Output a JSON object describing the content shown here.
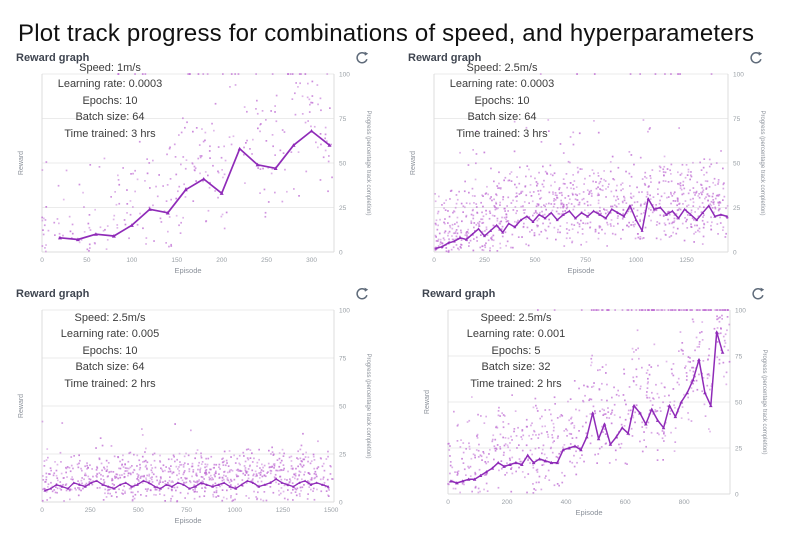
{
  "page_title": "Plot track progress for combinations of speed, and hyperparameters",
  "colors": {
    "title": "#111111",
    "panel_header": "#3f4550",
    "annotation": "#3c3c3c",
    "refresh_icon": "#5f6b7a",
    "line": "#8f2bb8",
    "dot": "#c06fd4",
    "grid": "#ebebeb",
    "axis_line": "#dcdcdc",
    "tick_label": "#9aa0a6",
    "axis_label": "#8b919a"
  },
  "panels": [
    {
      "title": "Reward graph",
      "refresh_icon": "refresh",
      "annotations": [
        "Speed: 1m/s",
        "Learning rate: 0.0003",
        "Epochs: 10",
        "Batch size: 64",
        "Time trained: 3 hrs"
      ]
    },
    {
      "title": "Reward graph",
      "refresh_icon": "refresh",
      "annotations": [
        "Speed: 2.5m/s",
        "Learning rate: 0.0003",
        "Epochs: 10",
        "Batch size: 64",
        "Time trained: 3 hrs"
      ]
    },
    {
      "title": "Reward graph",
      "refresh_icon": "refresh",
      "annotations": [
        "Speed: 2.5m/s",
        "Learning rate: 0.005",
        "Epochs: 10",
        "Batch size: 64",
        "Time trained: 2 hrs"
      ]
    },
    {
      "title": "Reward graph",
      "refresh_icon": "refresh",
      "annotations": [
        "Speed: 2.5m/s",
        "Learning rate: 0.001",
        "Epochs: 5",
        "Batch size: 32",
        "Time trained: 2 hrs"
      ]
    }
  ],
  "chart_data": [
    {
      "type": "scatter",
      "title": "Reward graph",
      "xlabel": "Episode",
      "ylabel_left": "Reward",
      "ylabel_right": "Progress (percentage track completion)",
      "xlim": [
        0,
        325
      ],
      "ylim": [
        0,
        100
      ],
      "x_ticks": [
        0,
        50,
        100,
        150,
        200,
        250,
        300
      ],
      "y_ticks_right": [
        0,
        25,
        50,
        75,
        100
      ],
      "grid": true,
      "series": [
        {
          "name": "average-progress-line",
          "x": [
            20,
            40,
            60,
            80,
            100,
            120,
            140,
            160,
            180,
            200,
            220,
            240,
            260,
            280,
            300,
            320
          ],
          "y": [
            8,
            7,
            10,
            9,
            15,
            24,
            22,
            35,
            41,
            33,
            58,
            49,
            47,
            60,
            68,
            60
          ]
        }
      ],
      "scatter": {
        "count": 290,
        "spread": 42,
        "center": 0.8,
        "floor": 14,
        "outlier_prob": 0.05,
        "outlier_mag": 35,
        "top_count": 26,
        "top_from": 60,
        "top_skew": 0.9,
        "seed": 7
      },
      "line_width": 1.7,
      "marker_size": 2.0
    },
    {
      "type": "scatter",
      "title": "Reward graph",
      "xlabel": "Episode",
      "ylabel_left": "Reward",
      "ylabel_right": "Progress (percentage track completion)",
      "xlim": [
        0,
        1455
      ],
      "ylim": [
        0,
        100
      ],
      "x_ticks": [
        0,
        250,
        500,
        750,
        1000,
        1250
      ],
      "y_ticks_right": [
        0,
        25,
        50,
        75,
        100
      ],
      "grid": true,
      "series": [
        {
          "name": "average-progress-line",
          "x": [
            10,
            40,
            70,
            100,
            130,
            160,
            190,
            220,
            250,
            280,
            310,
            340,
            370,
            400,
            430,
            460,
            490,
            520,
            550,
            580,
            610,
            640,
            670,
            700,
            730,
            760,
            790,
            820,
            850,
            880,
            910,
            940,
            970,
            1000,
            1030,
            1060,
            1090,
            1120,
            1150,
            1180,
            1210,
            1240,
            1270,
            1300,
            1330,
            1360,
            1390,
            1420,
            1450
          ],
          "y": [
            2,
            3,
            5,
            6,
            8,
            7,
            10,
            13,
            9,
            12,
            15,
            11,
            16,
            14,
            18,
            20,
            17,
            21,
            19,
            22,
            18,
            21,
            23,
            19,
            22,
            20,
            23,
            21,
            19,
            24,
            22,
            20,
            26,
            18,
            12,
            30,
            24,
            25,
            21,
            23,
            19,
            24,
            21,
            18,
            22,
            26,
            20,
            21,
            20
          ]
        }
      ],
      "scatter": {
        "count": 1000,
        "spread": 26,
        "center": 0.75,
        "floor": 10,
        "outlier_prob": 0.06,
        "outlier_mag": 45,
        "top_count": 12,
        "top_from": 100,
        "top_skew": 0.7,
        "seed": 13
      },
      "line_width": 1.5,
      "marker_size": 1.5
    },
    {
      "type": "scatter",
      "title": "Reward graph",
      "xlabel": "Episode",
      "ylabel_left": "Reward",
      "ylabel_right": "Progress (percentage track completion)",
      "xlim": [
        0,
        1515
      ],
      "ylim": [
        0,
        100
      ],
      "x_ticks": [
        0,
        250,
        500,
        750,
        1000,
        1250,
        1500
      ],
      "y_ticks_right": [
        0,
        25,
        50,
        75,
        100
      ],
      "grid": true,
      "series": [
        {
          "name": "average-progress-line",
          "x": [
            15,
            45,
            75,
            105,
            135,
            165,
            195,
            225,
            255,
            285,
            315,
            345,
            375,
            405,
            435,
            465,
            495,
            525,
            555,
            585,
            615,
            645,
            675,
            705,
            735,
            765,
            795,
            825,
            855,
            885,
            915,
            945,
            975,
            1005,
            1035,
            1065,
            1095,
            1125,
            1155,
            1185,
            1215,
            1245,
            1275,
            1305,
            1335,
            1365,
            1395,
            1425,
            1455,
            1485
          ],
          "y": [
            6,
            7,
            9,
            8,
            7,
            10,
            9,
            8,
            10,
            11,
            9,
            8,
            7,
            9,
            10,
            8,
            9,
            11,
            10,
            8,
            7,
            9,
            8,
            10,
            9,
            7,
            8,
            10,
            9,
            8,
            9,
            10,
            8,
            7,
            9,
            11,
            10,
            8,
            9,
            10,
            12,
            10,
            9,
            8,
            10,
            11,
            9,
            10,
            9,
            8
          ]
        }
      ],
      "scatter": {
        "count": 880,
        "spread": 15,
        "center": 0.7,
        "floor": 6,
        "outlier_prob": 0.03,
        "outlier_mag": 30,
        "top_count": 0,
        "top_from": 0,
        "top_skew": 1,
        "seed": 21
      },
      "line_width": 1.3,
      "marker_size": 1.4
    },
    {
      "type": "scatter",
      "title": "Reward graph",
      "xlabel": "Episode",
      "ylabel_left": "Reward",
      "ylabel_right": "Progress (percentage track completion)",
      "xlim": [
        0,
        955
      ],
      "ylim": [
        0,
        100
      ],
      "x_ticks": [
        0,
        200,
        400,
        600,
        800
      ],
      "y_ticks_right": [
        0,
        25,
        50,
        75,
        100
      ],
      "grid": true,
      "series": [
        {
          "name": "average-progress-line",
          "x": [
            10,
            30,
            50,
            70,
            90,
            110,
            130,
            150,
            170,
            190,
            210,
            230,
            250,
            270,
            290,
            310,
            330,
            350,
            370,
            390,
            410,
            430,
            450,
            470,
            490,
            510,
            530,
            550,
            570,
            590,
            610,
            630,
            650,
            670,
            690,
            710,
            730,
            750,
            770,
            790,
            810,
            830,
            850,
            870,
            890,
            910,
            930
          ],
          "y": [
            7,
            6,
            7,
            8,
            8,
            10,
            12,
            14,
            17,
            15,
            16,
            17,
            16,
            21,
            17,
            19,
            18,
            17,
            17,
            24,
            25,
            26,
            24,
            31,
            44,
            30,
            38,
            27,
            31,
            36,
            33,
            48,
            44,
            38,
            46,
            40,
            36,
            48,
            42,
            50,
            55,
            62,
            73,
            55,
            48,
            88,
            77
          ]
        }
      ],
      "scatter": {
        "count": 620,
        "spread": 32,
        "center": 0.75,
        "floor": 12,
        "outlier_prob": 0.05,
        "outlier_mag": 40,
        "top_count": 85,
        "top_from": 260,
        "top_skew": 0.5,
        "seed": 31
      },
      "line_width": 1.5,
      "marker_size": 1.8
    }
  ]
}
